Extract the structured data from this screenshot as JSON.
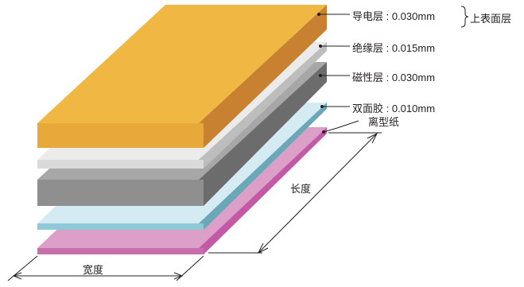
{
  "colors": {
    "conductor": "#efb53c",
    "insulation": "#e6e6e6",
    "magnetic": "#9c9c9c",
    "adhesive": "#cde6f1",
    "release_paper": "#dca0c8",
    "line": "#231f20"
  },
  "layers": [
    {
      "id": "conductor",
      "label": "导电层 : 0.030mm"
    },
    {
      "id": "insulation",
      "label": "绝缘层 : 0.015mm"
    },
    {
      "id": "magnetic",
      "label": "磁性层 : 0.030mm"
    },
    {
      "id": "adhesive",
      "label": "双面胶 : 0.010mm"
    },
    {
      "id": "release_paper",
      "label": "离型纸"
    }
  ],
  "group_label": "上表面层",
  "dimensions": {
    "length": "长度",
    "width": "宽度"
  }
}
